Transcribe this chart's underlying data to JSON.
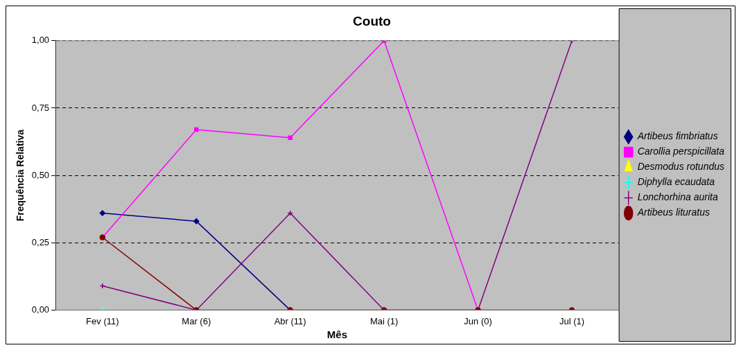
{
  "chart_data": {
    "type": "line",
    "title": "Couto",
    "xlabel": "Mês",
    "ylabel": "Frequência Relativa",
    "categories": [
      "Fev (11)",
      "Mar (6)",
      "Abr (11)",
      "Mai (1)",
      "Jun (0)",
      "Jul (1)"
    ],
    "series": [
      {
        "name": "Artibeus fimbriatus",
        "color": "#000080",
        "marker": "diamond",
        "values": [
          0.36,
          0.33,
          0,
          null,
          null,
          null
        ]
      },
      {
        "name": "Carollia perspicillata",
        "color": "#ff00ff",
        "marker": "square",
        "values": [
          0.27,
          0.67,
          0.64,
          1,
          0,
          null
        ]
      },
      {
        "name": "Desmodus rotundus",
        "color": "#ffff00",
        "marker": "triangle",
        "values": [
          0,
          null,
          null,
          null,
          null,
          null
        ]
      },
      {
        "name": "Diphylla ecaudata",
        "color": "#00ffff",
        "marker": "cross",
        "values": [
          0,
          0,
          null,
          null,
          null,
          null
        ]
      },
      {
        "name": "Lonchorhina aurita",
        "color": "#800080",
        "marker": "cross",
        "values": [
          0.09,
          0,
          0.36,
          0,
          0,
          1
        ]
      },
      {
        "name": "Artibeus lituratus",
        "color": "#800000",
        "marker": "circle",
        "values": [
          0.27,
          0,
          0,
          0,
          0,
          0
        ]
      }
    ],
    "ylim": [
      0,
      1
    ],
    "yticks": [
      {
        "value": 0,
        "label": "0,00"
      },
      {
        "value": 0.25,
        "label": "0,25"
      },
      {
        "value": 0.5,
        "label": "0,50"
      },
      {
        "value": 0.75,
        "label": "0,75"
      },
      {
        "value": 1,
        "label": "1,00"
      }
    ],
    "grid": "y",
    "legend": "right",
    "line_style": "solid"
  }
}
